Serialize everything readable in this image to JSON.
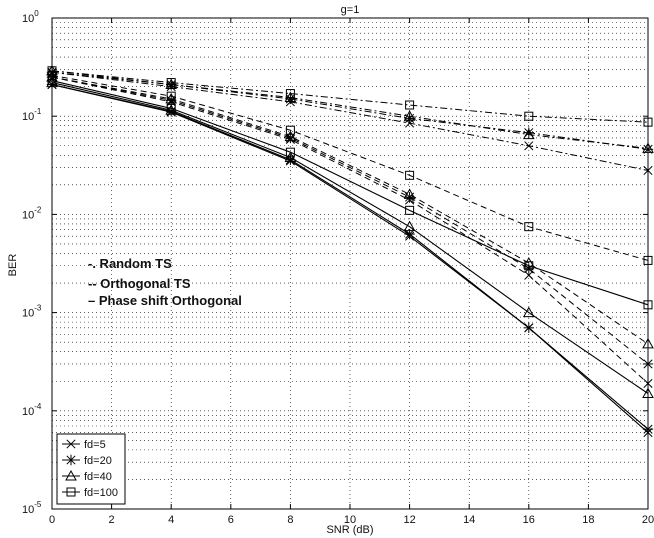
{
  "chart_data": {
    "type": "line",
    "title": "g=1",
    "xlabel": "SNR (dB)",
    "ylabel": "BER",
    "xlim": [
      0,
      20
    ],
    "ylim": [
      1e-05,
      1
    ],
    "yscale": "log",
    "grid": true,
    "x": [
      0,
      4,
      8,
      12,
      16,
      20
    ],
    "x_ticks": [
      "0",
      "2",
      "4",
      "6",
      "8",
      "10",
      "12",
      "14",
      "16",
      "18",
      "20"
    ],
    "y_ticks": [
      {
        "base": "10",
        "exp": "-5"
      },
      {
        "base": "10",
        "exp": "-4"
      },
      {
        "base": "10",
        "exp": "-3"
      },
      {
        "base": "10",
        "exp": "-2"
      },
      {
        "base": "10",
        "exp": "-1"
      },
      {
        "base": "10",
        "exp": "0"
      }
    ],
    "style_legend": [
      "-. Random TS",
      "-- Orthogonal TS",
      "– Phase shift Orthogonal"
    ],
    "marker_legend": [
      {
        "label": "fd=5",
        "marker": "x"
      },
      {
        "label": "fd=20",
        "marker": "star"
      },
      {
        "label": "fd=40",
        "marker": "triangle"
      },
      {
        "label": "fd=100",
        "marker": "square"
      }
    ],
    "series": [
      {
        "name": "Random TS, fd=5",
        "style": "dashdot",
        "marker": "x",
        "values": [
          0.28,
          0.2,
          0.14,
          0.085,
          0.05,
          0.028
        ]
      },
      {
        "name": "Random TS, fd=20",
        "style": "dashdot",
        "marker": "star",
        "values": [
          0.28,
          0.21,
          0.15,
          0.095,
          0.068,
          0.046
        ]
      },
      {
        "name": "Random TS, fd=40",
        "style": "dashdot",
        "marker": "triangle",
        "values": [
          0.29,
          0.21,
          0.155,
          0.1,
          0.065,
          0.047
        ]
      },
      {
        "name": "Random TS, fd=100",
        "style": "dashdot",
        "marker": "square",
        "values": [
          0.29,
          0.22,
          0.17,
          0.13,
          0.1,
          0.087
        ]
      },
      {
        "name": "Orthogonal TS, fd=5",
        "style": "dashed",
        "marker": "x",
        "values": [
          0.25,
          0.14,
          0.058,
          0.014,
          0.0024,
          0.00019
        ]
      },
      {
        "name": "Orthogonal TS, fd=20",
        "style": "dashed",
        "marker": "star",
        "values": [
          0.25,
          0.145,
          0.06,
          0.015,
          0.0028,
          0.0003
        ]
      },
      {
        "name": "Orthogonal TS, fd=40",
        "style": "dashed",
        "marker": "triangle",
        "values": [
          0.25,
          0.15,
          0.062,
          0.016,
          0.0032,
          0.00048
        ]
      },
      {
        "name": "Orthogonal TS, fd=100",
        "style": "dashed",
        "marker": "square",
        "values": [
          0.26,
          0.16,
          0.072,
          0.025,
          0.0075,
          0.0034
        ]
      },
      {
        "name": "Phase shift Orthogonal, fd=5",
        "style": "solid",
        "marker": "x",
        "values": [
          0.21,
          0.11,
          0.035,
          0.006,
          0.0007,
          6e-05
        ]
      },
      {
        "name": "Phase shift Orthogonal, fd=20",
        "style": "solid",
        "marker": "star",
        "values": [
          0.21,
          0.112,
          0.036,
          0.0063,
          0.0007,
          6.5e-05
        ]
      },
      {
        "name": "Phase shift Orthogonal, fd=40",
        "style": "solid",
        "marker": "triangle",
        "values": [
          0.22,
          0.115,
          0.038,
          0.0075,
          0.001,
          0.00015
        ]
      },
      {
        "name": "Phase shift Orthogonal, fd=100",
        "style": "solid",
        "marker": "square",
        "values": [
          0.23,
          0.12,
          0.043,
          0.011,
          0.003,
          0.0012
        ]
      }
    ]
  }
}
